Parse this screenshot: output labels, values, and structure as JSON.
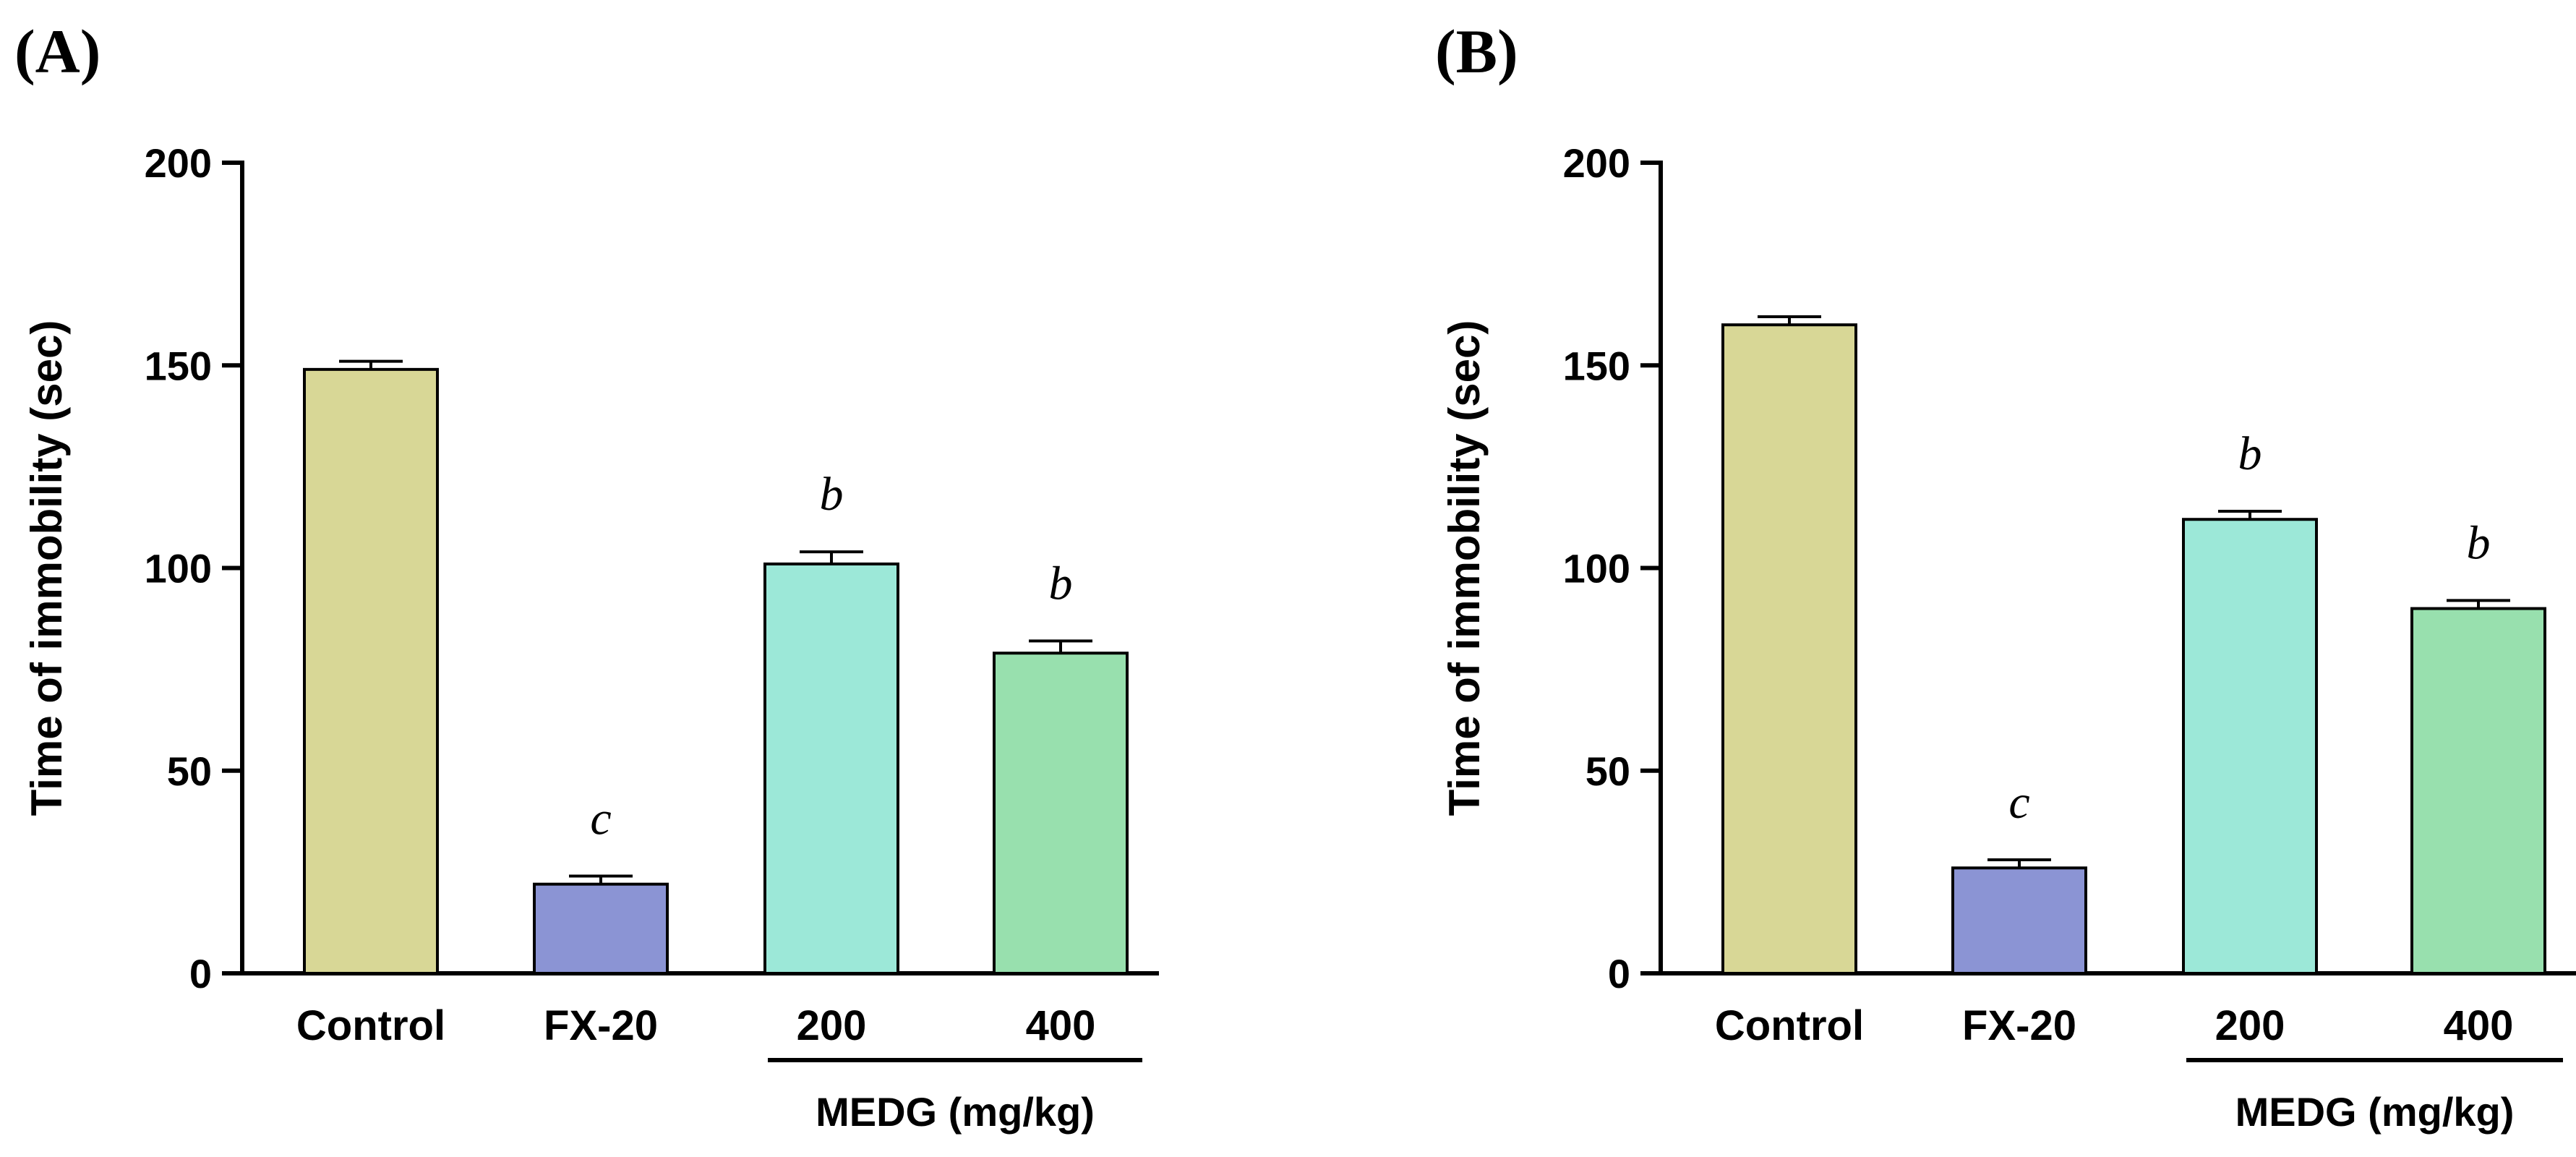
{
  "chart_data": [
    {
      "panel": "(A)",
      "type": "bar",
      "ylabel": "Time of immobility (sec)",
      "ylim": [
        0,
        200
      ],
      "yticks": [
        "0",
        "50",
        "100",
        "150",
        "200"
      ],
      "categories": [
        "Control",
        "FX-20",
        "200",
        "400"
      ],
      "values": [
        149,
        22,
        101,
        79
      ],
      "errors": [
        2,
        2,
        3,
        3
      ],
      "colors": [
        "#d8d796",
        "#8b94d4",
        "#9ce8d8",
        "#98e0ae"
      ],
      "significance": [
        "",
        "c",
        "b",
        "b"
      ],
      "group_label": "MEDG (mg/kg)"
    },
    {
      "panel": "(B)",
      "type": "bar",
      "ylabel": "Time of immobility (sec)",
      "ylim": [
        0,
        200
      ],
      "yticks": [
        "0",
        "50",
        "100",
        "150",
        "200"
      ],
      "categories": [
        "Control",
        "FX-20",
        "200",
        "400"
      ],
      "values": [
        160,
        26,
        112,
        90
      ],
      "errors": [
        2,
        2,
        2,
        2
      ],
      "colors": [
        "#d8d796",
        "#8b94d4",
        "#9ce8d8",
        "#98e0ae"
      ],
      "significance": [
        "",
        "c",
        "b",
        "b"
      ],
      "group_label": "MEDG (mg/kg)"
    }
  ]
}
